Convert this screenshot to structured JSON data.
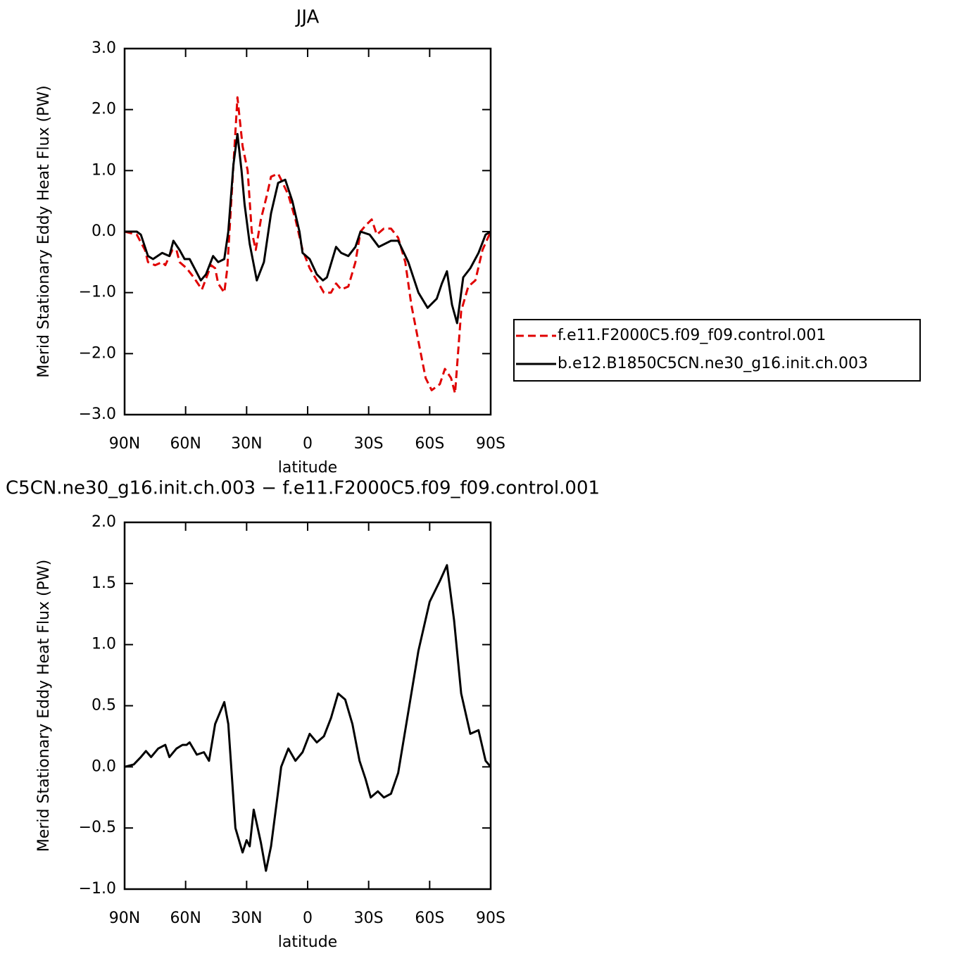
{
  "chart_data": [
    {
      "type": "line",
      "title": "JJA",
      "xlabel": "latitude",
      "ylabel": "Merid Stationary Eddy Heat Flux (PW)",
      "xlim": [
        90,
        -90
      ],
      "xticks": [
        {
          "value": 90,
          "label": "90N"
        },
        {
          "value": 60,
          "label": "60N"
        },
        {
          "value": 30,
          "label": "30N"
        },
        0,
        {
          "value": -30,
          "label": "30S"
        },
        {
          "value": -60,
          "label": "60S"
        },
        {
          "value": -90,
          "label": "90S"
        }
      ],
      "ylim": [
        -3,
        3
      ],
      "yticks": [
        {
          "value": -3,
          "label": "−3.0"
        },
        {
          "value": -2,
          "label": "−2.0"
        },
        {
          "value": -1,
          "label": "−1.0"
        },
        {
          "value": 0,
          "label": "0.0"
        },
        {
          "value": 1,
          "label": "1.0"
        },
        {
          "value": 2,
          "label": "2.0"
        },
        {
          "value": 3,
          "label": "3.0"
        }
      ],
      "legend": "right",
      "series": [
        {
          "name": "f.e11.F2000C5.f09_f09.control.001",
          "color": "#e00000",
          "line_style": "dashed",
          "x": [
            90,
            84,
            80,
            78.5,
            75,
            71.5,
            70,
            66.5,
            64.5,
            63,
            59.5,
            56,
            52,
            47.5,
            45.5,
            44,
            41,
            39.5,
            37,
            34.5,
            32,
            29.5,
            27.5,
            25.5,
            23,
            20,
            18,
            14.5,
            13,
            9.5,
            6,
            2.5,
            -1,
            -4.5,
            -8,
            -11.5,
            -14,
            -16.5,
            -20,
            -23.5,
            -26,
            -28.5,
            -31.5,
            -34,
            -37.5,
            -41,
            -44.5,
            -48,
            -51,
            -54.5,
            -58,
            -61,
            -65,
            -67.5,
            -70.5,
            -72.5,
            -75.5,
            -79,
            -82.5,
            -86,
            -90
          ],
          "values": [
            0,
            -0.05,
            -0.3,
            -0.5,
            -0.55,
            -0.5,
            -0.55,
            -0.3,
            -0.3,
            -0.5,
            -0.6,
            -0.75,
            -0.95,
            -0.55,
            -0.6,
            -0.85,
            -1.0,
            -0.6,
            0.8,
            2.2,
            1.4,
            1.0,
            0,
            -0.3,
            0.2,
            0.6,
            0.9,
            0.95,
            0.85,
            0.6,
            0.2,
            -0.3,
            -0.6,
            -0.8,
            -1.0,
            -1.0,
            -0.85,
            -0.95,
            -0.9,
            -0.5,
            0,
            0.1,
            0.2,
            -0.05,
            0.05,
            0.05,
            -0.1,
            -0.5,
            -1.2,
            -1.8,
            -2.4,
            -2.6,
            -2.5,
            -2.25,
            -2.4,
            -2.65,
            -1.3,
            -0.9,
            -0.8,
            -0.3,
            0
          ]
        },
        {
          "name": "b.e12.B1850C5CN.ne30_g16.init.ch.003",
          "color": "#000000",
          "line_style": "solid",
          "x": [
            90,
            84,
            82,
            78.5,
            76,
            71.5,
            68,
            66,
            63,
            60.5,
            58,
            52.5,
            50,
            46.5,
            44,
            41,
            39,
            36.5,
            34.5,
            32.5,
            31,
            28.5,
            25,
            21.5,
            18,
            14.5,
            11,
            7.5,
            4,
            2.5,
            -1,
            -4.5,
            -7.5,
            -9.5,
            -14,
            -16.5,
            -20,
            -23.5,
            -26,
            -30.5,
            -35,
            -41,
            -44.5,
            -49.5,
            -54.5,
            -59,
            -63.5,
            -66,
            -68.5,
            -71,
            -73.5,
            -76.5,
            -80,
            -84,
            -87.5,
            -90
          ],
          "values": [
            0,
            0,
            -0.05,
            -0.4,
            -0.45,
            -0.35,
            -0.4,
            -0.15,
            -0.3,
            -0.45,
            -0.45,
            -0.8,
            -0.7,
            -0.4,
            -0.5,
            -0.45,
            0,
            1.1,
            1.6,
            1.0,
            0.45,
            -0.2,
            -0.8,
            -0.5,
            0.3,
            0.8,
            0.85,
            0.5,
            0,
            -0.35,
            -0.45,
            -0.7,
            -0.8,
            -0.75,
            -0.25,
            -0.35,
            -0.4,
            -0.25,
            0,
            -0.05,
            -0.25,
            -0.15,
            -0.15,
            -0.5,
            -1.0,
            -1.25,
            -1.1,
            -0.85,
            -0.65,
            -1.2,
            -1.5,
            -0.75,
            -0.6,
            -0.35,
            -0.05,
            0
          ]
        }
      ]
    },
    {
      "type": "line",
      "title": "C5CN.ne30_g16.init.ch.003 − f.e11.F2000C5.f09_f09.control.001",
      "xlabel": "latitude",
      "ylabel": "Merid Stationary Eddy Heat Flux (PW)",
      "xlim": [
        90,
        -90
      ],
      "xticks": [
        {
          "value": 90,
          "label": "90N"
        },
        {
          "value": 60,
          "label": "60N"
        },
        {
          "value": 30,
          "label": "30N"
        },
        0,
        {
          "value": -30,
          "label": "30S"
        },
        {
          "value": -60,
          "label": "60S"
        },
        {
          "value": -90,
          "label": "90S"
        }
      ],
      "ylim": [
        -1,
        2
      ],
      "yticks": [
        {
          "value": -1,
          "label": "−1.0"
        },
        {
          "value": -0.5,
          "label": "−0.5"
        },
        {
          "value": 0,
          "label": "0.0"
        },
        {
          "value": 0.5,
          "label": "0.5"
        },
        {
          "value": 1,
          "label": "1.0"
        },
        {
          "value": 1.5,
          "label": "1.5"
        },
        {
          "value": 2,
          "label": "2.0"
        }
      ],
      "series": [
        {
          "color": "#000000",
          "line_style": "solid",
          "x": [
            90,
            85.5,
            82,
            79.5,
            77,
            73.5,
            70,
            68,
            64.5,
            61.5,
            59.5,
            58,
            54.5,
            51,
            48.5,
            45.5,
            41,
            39,
            35.5,
            32,
            30,
            28.5,
            26.5,
            23,
            20.5,
            18,
            14.5,
            13,
            9.5,
            6,
            2.5,
            -1,
            -4.5,
            -8,
            -11.5,
            -15,
            -18.5,
            -22,
            -25.5,
            -28.5,
            -31,
            -34.5,
            -37.5,
            -41,
            -44.5,
            -49.5,
            -54.5,
            -60,
            -65,
            -68.5,
            -72,
            -75.5,
            -80,
            -84,
            -87.5,
            -90
          ],
          "values": [
            0,
            0.02,
            0.08,
            0.13,
            0.08,
            0.15,
            0.18,
            0.08,
            0.15,
            0.18,
            0.18,
            0.2,
            0.1,
            0.12,
            0.05,
            0.35,
            0.53,
            0.35,
            -0.5,
            -0.7,
            -0.6,
            -0.65,
            -0.35,
            -0.62,
            -0.85,
            -0.65,
            -0.2,
            0,
            0.15,
            0.05,
            0.12,
            0.27,
            0.2,
            0.25,
            0.4,
            0.6,
            0.55,
            0.35,
            0.05,
            -0.1,
            -0.25,
            -0.2,
            -0.25,
            -0.22,
            -0.05,
            0.45,
            0.95,
            1.35,
            1.52,
            1.65,
            1.2,
            0.6,
            0.27,
            0.3,
            0.05,
            0
          ]
        }
      ]
    }
  ]
}
